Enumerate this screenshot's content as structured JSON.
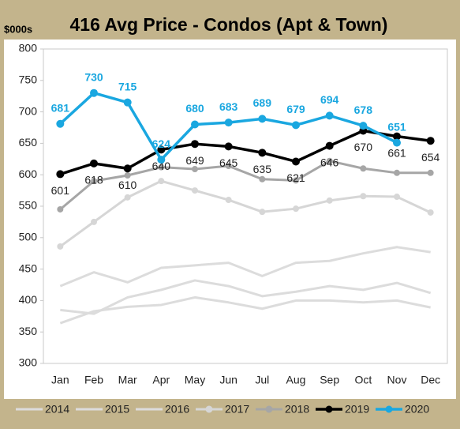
{
  "chart_data": {
    "type": "line",
    "title": "416 Avg Price - Condos (Apt & Town)",
    "y_label": "$000s",
    "categories": [
      "Jan",
      "Feb",
      "Mar",
      "Apr",
      "May",
      "Jun",
      "Jul",
      "Aug",
      "Sep",
      "Oct",
      "Nov",
      "Dec"
    ],
    "ylim": [
      300,
      800
    ],
    "yticks": [
      300,
      350,
      400,
      450,
      500,
      550,
      600,
      650,
      700,
      750,
      800
    ],
    "grid": false,
    "legend": "bottom",
    "series": [
      {
        "name": "2014",
        "color": "#dcdcdc",
        "marker": false,
        "values": [
          364,
          383,
          390,
          393,
          405,
          397,
          387,
          400,
          400,
          397,
          400,
          389
        ]
      },
      {
        "name": "2015",
        "color": "#dcdcdc",
        "marker": false,
        "values": [
          385,
          379,
          405,
          417,
          432,
          423,
          407,
          414,
          423,
          417,
          428,
          412
        ]
      },
      {
        "name": "2016",
        "color": "#dcdcdc",
        "marker": false,
        "values": [
          423,
          445,
          429,
          452,
          456,
          460,
          439,
          460,
          463,
          475,
          485,
          477
        ]
      },
      {
        "name": "2017",
        "color": "#d6d6d6",
        "marker": true,
        "values": [
          486,
          525,
          564,
          590,
          575,
          560,
          541,
          546,
          559,
          566,
          565,
          540
        ]
      },
      {
        "name": "2018",
        "color": "#a6a6a6",
        "marker": true,
        "values": [
          545,
          590,
          599,
          612,
          609,
          614,
          593,
          591,
          622,
          610,
          603,
          603
        ]
      },
      {
        "name": "2019",
        "color": "#000000",
        "marker": true,
        "labels": "below",
        "values": [
          601,
          618,
          610,
          640,
          649,
          645,
          635,
          621,
          646,
          670,
          661,
          654
        ]
      },
      {
        "name": "2020",
        "color": "#1aa7e0",
        "marker": true,
        "labels": "above",
        "values": [
          681,
          730,
          715,
          624,
          680,
          683,
          689,
          679,
          694,
          678,
          651,
          null
        ]
      }
    ]
  }
}
